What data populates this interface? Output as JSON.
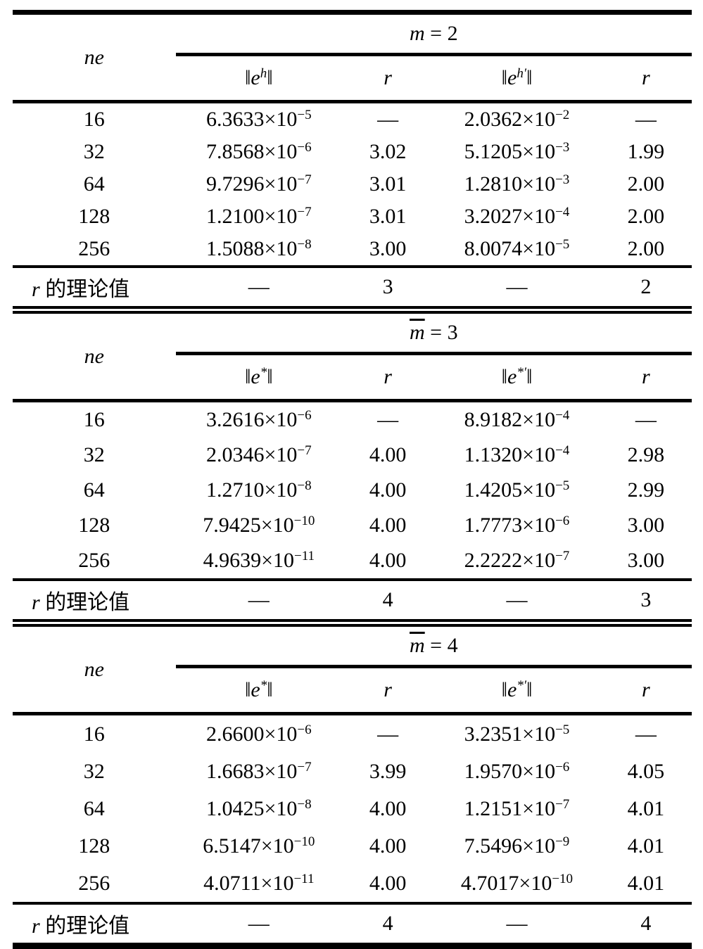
{
  "page": {
    "background": "#ffffff",
    "text_color": "#000000",
    "rule_color": "#000000"
  },
  "tables": [
    {
      "id": "m2",
      "title": {
        "var": "m",
        "var_class": "",
        "rest": " = 2"
      },
      "ne_label": "ne",
      "col_headers": [
        {
          "pre": "‖",
          "base": "e",
          "sup": "h",
          "post": "‖"
        },
        {
          "pre": "",
          "base": "r",
          "sup": "",
          "post": ""
        },
        {
          "pre": "‖",
          "base": "e",
          "sup": "h′",
          "post": "‖"
        },
        {
          "pre": "",
          "base": "r",
          "sup": "",
          "post": ""
        }
      ],
      "rows": [
        {
          "ne": "16",
          "v1": "6.3633×10",
          "e1": "−5",
          "r1": "—",
          "v2": "2.0362×10",
          "e2": "−2",
          "r2": "—"
        },
        {
          "ne": "32",
          "v1": "7.8568×10",
          "e1": "−6",
          "r1": "3.02",
          "v2": "5.1205×10",
          "e2": "−3",
          "r2": "1.99"
        },
        {
          "ne": "64",
          "v1": "9.7296×10",
          "e1": "−7",
          "r1": "3.01",
          "v2": "1.2810×10",
          "e2": "−3",
          "r2": "2.00"
        },
        {
          "ne": "128",
          "v1": "1.2100×10",
          "e1": "−7",
          "r1": "3.01",
          "v2": "3.2027×10",
          "e2": "−4",
          "r2": "2.00"
        },
        {
          "ne": "256",
          "v1": "1.5088×10",
          "e1": "−8",
          "r1": "3.00",
          "v2": "8.0074×10",
          "e2": "−5",
          "r2": "2.00"
        }
      ],
      "theory": {
        "var": "r",
        "label": " 的理论值",
        "c1": "—",
        "c2": "3",
        "c3": "—",
        "c4": "2"
      }
    },
    {
      "id": "mbar3",
      "title": {
        "var": "m",
        "var_class": "overbar",
        "rest": " = 3"
      },
      "ne_label": "ne",
      "col_headers": [
        {
          "pre": "‖",
          "base": "e",
          "sup": "*",
          "post": "‖"
        },
        {
          "pre": "",
          "base": "r",
          "sup": "",
          "post": ""
        },
        {
          "pre": "‖",
          "base": "e",
          "sup": "*′",
          "post": "‖"
        },
        {
          "pre": "",
          "base": "r",
          "sup": "",
          "post": ""
        }
      ],
      "rows": [
        {
          "ne": "16",
          "v1": "3.2616×10",
          "e1": "−6",
          "r1": "—",
          "v2": "8.9182×10",
          "e2": "−4",
          "r2": "—"
        },
        {
          "ne": "32",
          "v1": "2.0346×10",
          "e1": "−7",
          "r1": "4.00",
          "v2": "1.1320×10",
          "e2": "−4",
          "r2": "2.98"
        },
        {
          "ne": "64",
          "v1": "1.2710×10",
          "e1": "−8",
          "r1": "4.00",
          "v2": "1.4205×10",
          "e2": "−5",
          "r2": "2.99"
        },
        {
          "ne": "128",
          "v1": "7.9425×10",
          "e1": "−10",
          "r1": "4.00",
          "v2": "1.7773×10",
          "e2": "−6",
          "r2": "3.00"
        },
        {
          "ne": "256",
          "v1": "4.9639×10",
          "e1": "−11",
          "r1": "4.00",
          "v2": "2.2222×10",
          "e2": "−7",
          "r2": "3.00"
        }
      ],
      "theory": {
        "var": "r",
        "label": " 的理论值",
        "c1": "—",
        "c2": "4",
        "c3": "—",
        "c4": "3"
      }
    },
    {
      "id": "mbar4",
      "title": {
        "var": "m",
        "var_class": "overbar",
        "rest": " = 4"
      },
      "ne_label": "ne",
      "col_headers": [
        {
          "pre": "‖",
          "base": "e",
          "sup": "*",
          "post": "‖"
        },
        {
          "pre": "",
          "base": "r",
          "sup": "",
          "post": ""
        },
        {
          "pre": "‖",
          "base": "e",
          "sup": "*′",
          "post": "‖"
        },
        {
          "pre": "",
          "base": "r",
          "sup": "",
          "post": ""
        }
      ],
      "rows": [
        {
          "ne": "16",
          "v1": "2.6600×10",
          "e1": "−6",
          "r1": "—",
          "v2": "3.2351×10",
          "e2": "−5",
          "r2": "—"
        },
        {
          "ne": "32",
          "v1": "1.6683×10",
          "e1": "−7",
          "r1": "3.99",
          "v2": "1.9570×10",
          "e2": "−6",
          "r2": "4.05"
        },
        {
          "ne": "64",
          "v1": "1.0425×10",
          "e1": "−8",
          "r1": "4.00",
          "v2": "1.2151×10",
          "e2": "−7",
          "r2": "4.01"
        },
        {
          "ne": "128",
          "v1": "6.5147×10",
          "e1": "−10",
          "r1": "4.00",
          "v2": "7.5496×10",
          "e2": "−9",
          "r2": "4.01"
        },
        {
          "ne": "256",
          "v1": "4.0711×10",
          "e1": "−11",
          "r1": "4.00",
          "v2": "4.7017×10",
          "e2": "−10",
          "r2": "4.01"
        }
      ],
      "theory": {
        "var": "r",
        "label": " 的理论值",
        "c1": "—",
        "c2": "4",
        "c3": "—",
        "c4": "4"
      }
    }
  ]
}
